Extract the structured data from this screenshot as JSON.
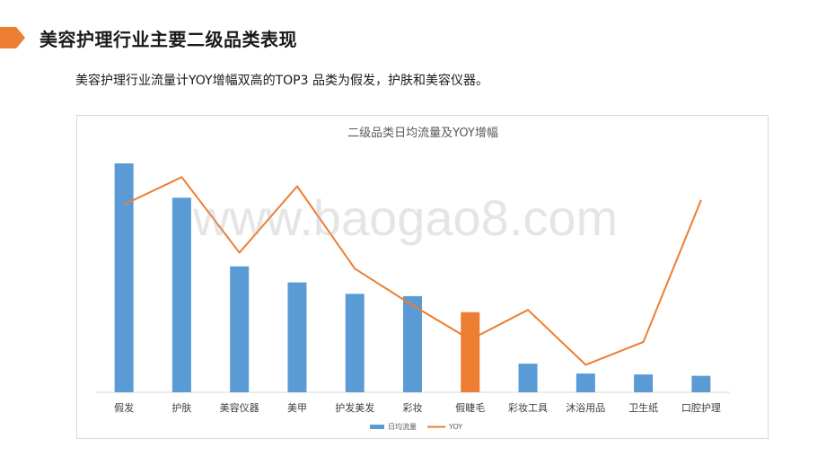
{
  "header": {
    "title": "美容护理行业主要二级品类表现",
    "accent_color": "#ED7D31"
  },
  "subtitle": "美容护理行业流量计YOY增幅双高的TOP3 品类为假发，护肤和美容仪器。",
  "watermark": "www.baogao8.com",
  "chart_data": {
    "type": "bar",
    "title": "二级品类日均流量及YOY增幅",
    "categories": [
      "假发",
      "护肤",
      "美容仪器",
      "美甲",
      "护发美发",
      "彩妆",
      "假睫毛",
      "彩妆工具",
      "沐浴用品",
      "卫生纸",
      "口腔护理"
    ],
    "series": [
      {
        "name": "日均流量",
        "type": "bar",
        "color": "#5B9BD5",
        "values": [
          100,
          85,
          55,
          48,
          43,
          42,
          35,
          12.5,
          8.2,
          7.8,
          7.2
        ],
        "highlight_index": 6,
        "highlight_color": "#ED7D31"
      },
      {
        "name": "YOY",
        "type": "line",
        "color": "#ED7D31",
        "values": [
          82,
          94,
          61,
          90,
          54,
          38,
          23,
          36,
          12,
          22,
          84
        ]
      }
    ],
    "ylim": [
      0,
      100
    ],
    "axis_labels_shown": false,
    "grid": false,
    "legend": "bottom-center"
  }
}
